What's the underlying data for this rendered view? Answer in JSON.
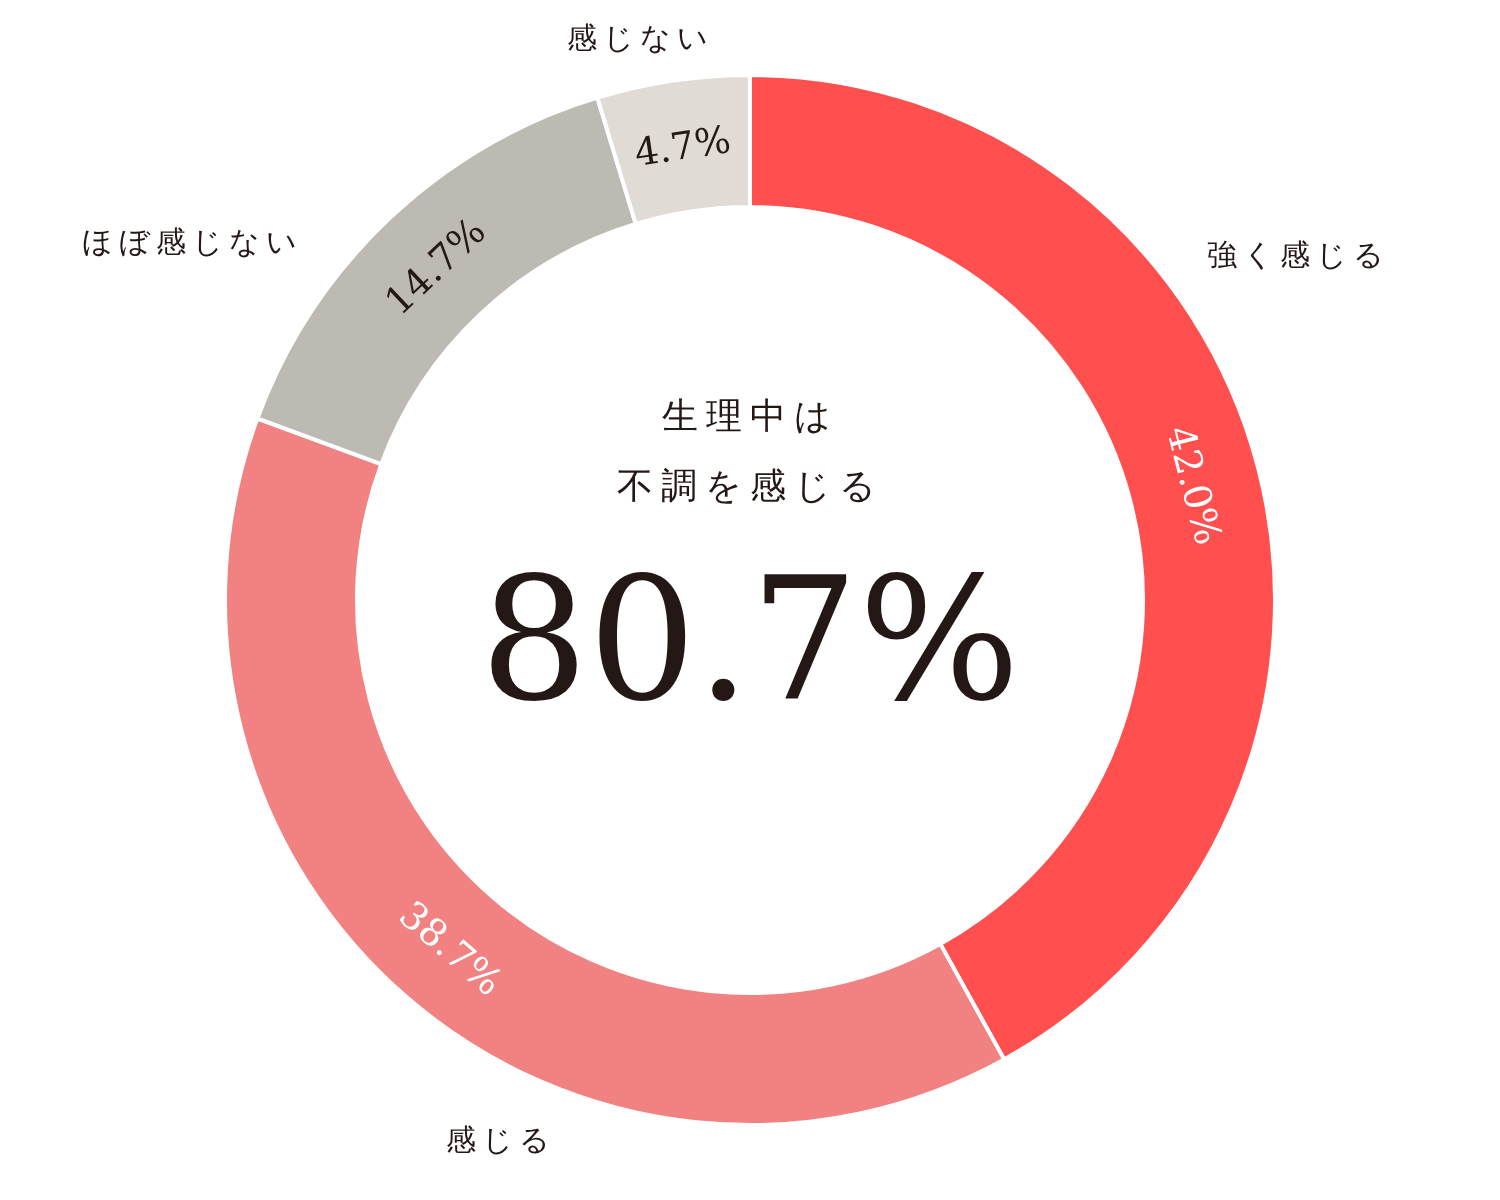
{
  "chart_data": {
    "type": "donut",
    "categories": [
      "強く感じる",
      "感じる",
      "ほぼ感じない",
      "感じない"
    ],
    "values": [
      42.0,
      38.7,
      14.7,
      4.7
    ],
    "value_labels": [
      "42.0%",
      "38.7%",
      "14.7%",
      "4.7%"
    ],
    "colors": [
      "#ff4f4f",
      "#f28282",
      "#bdb9b3",
      "#e0dbd5"
    ],
    "annotations": [
      "生理中は",
      "不調を感じる",
      "80.7%"
    ]
  }
}
